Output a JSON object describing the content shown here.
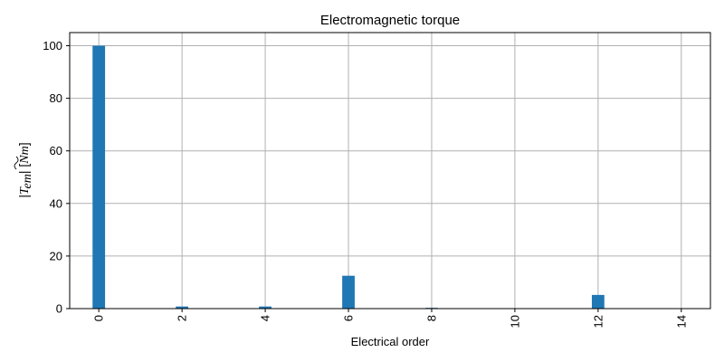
{
  "chart_data": {
    "type": "bar",
    "title": "Electromagnetic torque",
    "xlabel": "Electrical order",
    "ylabel": {
      "open": "|",
      "symbol": "T",
      "subscript": "em",
      "close": "| [",
      "unit": "Nm",
      "end": "]"
    },
    "x": [
      0,
      2,
      4,
      6,
      8,
      12
    ],
    "values": [
      100,
      0.8,
      0.8,
      12.5,
      0.3,
      5.2
    ],
    "xlim": [
      -0.7,
      14.7
    ],
    "ylim": [
      0,
      105
    ],
    "xticks": [
      "0",
      "2",
      "4",
      "6",
      "8",
      "10",
      "12",
      "14"
    ],
    "yticks": [
      "0",
      "20",
      "40",
      "60",
      "80",
      "100"
    ],
    "grid": true,
    "legend": "none",
    "bar_color": "#1f77b4",
    "grid_color": "#b0b0b0"
  }
}
